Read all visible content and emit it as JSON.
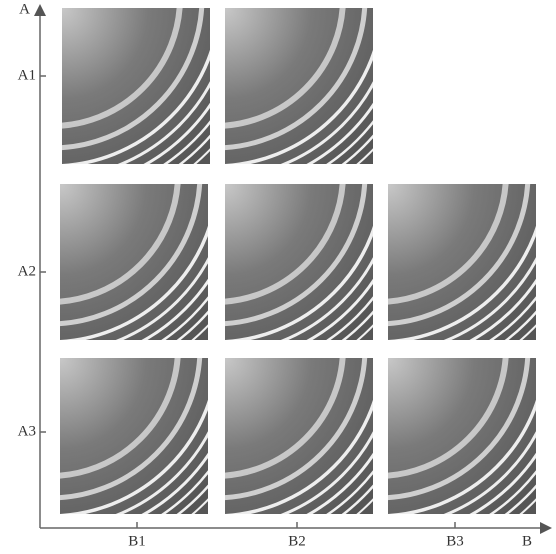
{
  "axes": {
    "y": {
      "label": "A",
      "ticks": [
        "A1",
        "A2",
        "A3"
      ]
    },
    "x": {
      "label": "B",
      "ticks": [
        "B1",
        "B2",
        "B3"
      ]
    }
  }
}
